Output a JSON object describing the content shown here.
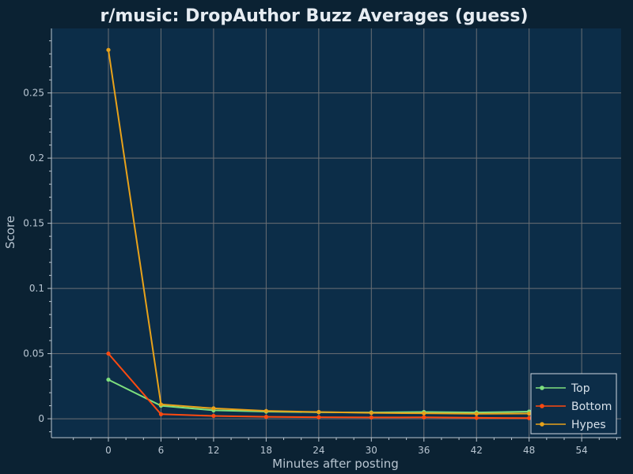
{
  "chart_data": {
    "type": "line",
    "title": "r/music: DropAuthor Buzz Averages (guess)",
    "xlabel": "Minutes after posting",
    "ylabel": "Score",
    "xlim": [
      -6.5,
      58.5
    ],
    "ylim": [
      -0.0145,
      0.2995
    ],
    "x_ticks": [
      0,
      6,
      12,
      18,
      24,
      30,
      36,
      42,
      48,
      54
    ],
    "y_ticks": [
      0,
      0.05,
      0.1,
      0.15,
      0.2,
      0.25
    ],
    "y_tick_labels": [
      "0",
      "0.05",
      "0.1",
      "0.15",
      "0.2",
      "0.25"
    ],
    "grid": true,
    "legend_position": "bottom-right",
    "x": [
      0,
      6,
      12,
      18,
      24,
      30,
      36,
      42,
      48
    ],
    "series": [
      {
        "name": "Top",
        "color": "#7ee07e",
        "values": [
          0.03,
          0.01,
          0.0065,
          0.0055,
          0.005,
          0.0048,
          0.0052,
          0.0048,
          0.0055
        ]
      },
      {
        "name": "Bottom",
        "color": "#ff4a10",
        "values": [
          0.05,
          0.0035,
          0.0022,
          0.0015,
          0.0012,
          0.001,
          0.0011,
          0.0007,
          0.0005
        ]
      },
      {
        "name": "Hypes",
        "color": "#e8a21a",
        "values": [
          0.283,
          0.011,
          0.008,
          0.006,
          0.0052,
          0.0045,
          0.0042,
          0.0038,
          0.004
        ]
      }
    ]
  },
  "colors": {
    "page_background": "#0b2233",
    "plot_background": "#0c2d48",
    "grid": "#6b6f74",
    "axis_text": "#b9c6d2"
  }
}
